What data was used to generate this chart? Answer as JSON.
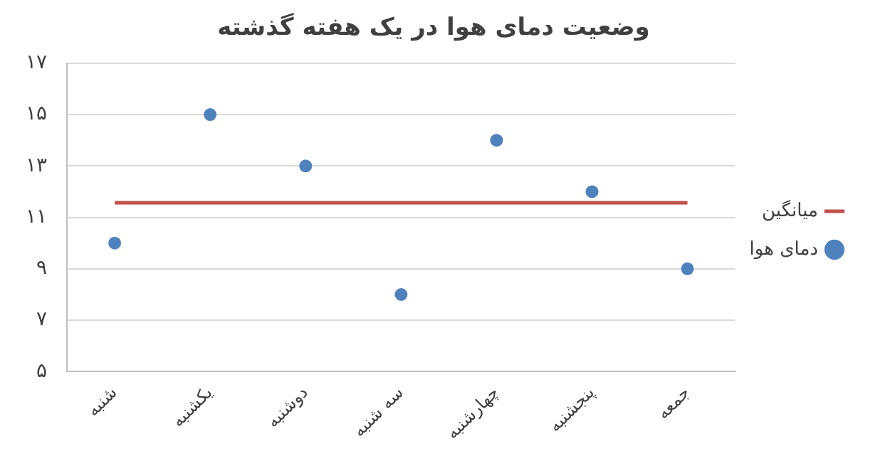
{
  "chart_data": {
    "type": "scatter",
    "title": "وضعیت دمای هوا در یک هفته گذشته",
    "categories": [
      "شنبه",
      "یکشنبه",
      "دوشنبه",
      "سه شنبه",
      "چهارشنبه",
      "پنجشنبه",
      "جمعه"
    ],
    "series": [
      {
        "name": "میانگین",
        "type": "line",
        "color": "#c0504d",
        "values": [
          11.57,
          11.57,
          11.57,
          11.57,
          11.57,
          11.57,
          11.57
        ],
        "marker": "none"
      },
      {
        "name": "دمای هوا",
        "color": "#4f81bd",
        "values": [
          10,
          15,
          13,
          8,
          14,
          12,
          9
        ],
        "marker": "circle"
      }
    ],
    "ylim": [
      5,
      17
    ],
    "yticks": [
      {
        "value": 5,
        "label": "۵"
      },
      {
        "value": 7,
        "label": "۷"
      },
      {
        "value": 9,
        "label": "۹"
      },
      {
        "value": 11,
        "label": "۱۱"
      },
      {
        "value": 13,
        "label": "۱۳"
      },
      {
        "value": 15,
        "label": "۱۵"
      },
      {
        "value": 17,
        "label": "۱۷"
      }
    ],
    "grid": "y",
    "legend": "right"
  }
}
